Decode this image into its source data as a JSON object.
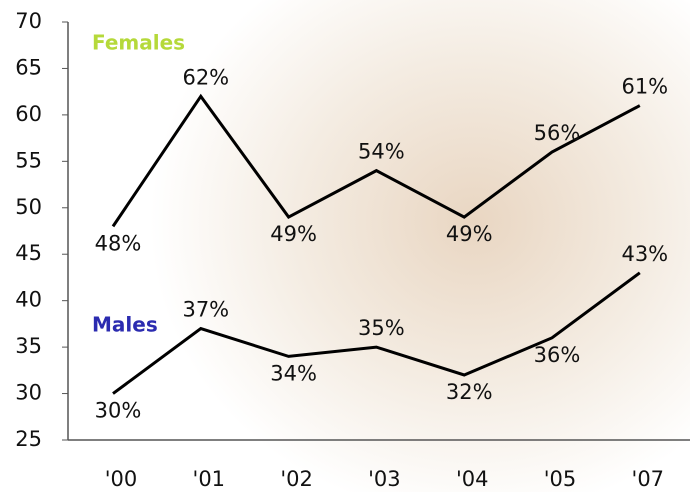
{
  "chart_data": {
    "type": "line",
    "categories": [
      "'00",
      "'01",
      "'02",
      "'03",
      "'04",
      "'05",
      "'07"
    ],
    "series": [
      {
        "name": "Females",
        "color": "#000000",
        "name_color": "#b5d93a",
        "values": [
          48,
          62,
          49,
          54,
          49,
          56,
          61
        ],
        "value_labels": [
          "48%",
          "62%",
          "49%",
          "54%",
          "49%",
          "56%",
          "61%"
        ]
      },
      {
        "name": "Males",
        "color": "#000000",
        "name_color": "#2b2bb0",
        "values": [
          30,
          37,
          34,
          35,
          32,
          36,
          43
        ],
        "value_labels": [
          "30%",
          "37%",
          "34%",
          "35%",
          "32%",
          "36%",
          "43%"
        ]
      }
    ],
    "ylim": [
      25,
      70
    ],
    "yticks": [
      25,
      30,
      35,
      40,
      45,
      50,
      55,
      60,
      65,
      70
    ],
    "grid": false
  }
}
